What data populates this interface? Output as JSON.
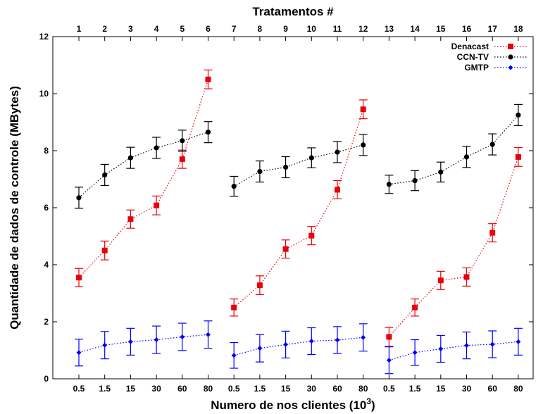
{
  "chart_data": {
    "type": "line",
    "title": "Tratamentos #",
    "xlabel": "Numero de nos clientes (10",
    "xlabel_sup": "3",
    "xlabel_suffix": ")",
    "ylabel": "Quantidade de dados de controle (MBytes)",
    "ylim": [
      0,
      12
    ],
    "yticks": [
      0,
      2,
      4,
      6,
      8,
      10,
      12
    ],
    "x_categories": [
      "0.5",
      "1.5",
      "15",
      "30",
      "60",
      "80",
      "0.5",
      "1.5",
      "15",
      "30",
      "60",
      "80",
      "0.5",
      "1.5",
      "15",
      "30",
      "60",
      "80"
    ],
    "top_categories": [
      "1",
      "2",
      "3",
      "4",
      "5",
      "6",
      "7",
      "8",
      "9",
      "10",
      "11",
      "12",
      "13",
      "14",
      "15",
      "16",
      "17",
      "18"
    ],
    "groups": [
      [
        0,
        5
      ],
      [
        6,
        11
      ],
      [
        12,
        17
      ]
    ],
    "grid": false,
    "legend_position": "top-right",
    "series": [
      {
        "name": "Denacast",
        "color": "#e8000b",
        "marker": "square",
        "values": [
          3.55,
          4.5,
          5.6,
          6.08,
          7.7,
          10.5,
          2.5,
          3.28,
          4.55,
          5.02,
          6.63,
          9.45,
          1.47,
          2.5,
          3.45,
          3.57,
          5.12,
          7.78
        ],
        "errors": [
          0.32,
          0.33,
          0.32,
          0.33,
          0.32,
          0.33,
          0.3,
          0.33,
          0.32,
          0.32,
          0.32,
          0.33,
          0.33,
          0.3,
          0.32,
          0.32,
          0.32,
          0.33
        ]
      },
      {
        "name": "CCN-TV",
        "color": "#000000",
        "marker": "circle",
        "values": [
          6.35,
          7.15,
          7.75,
          8.1,
          8.35,
          8.65,
          6.75,
          7.27,
          7.42,
          7.75,
          7.95,
          8.2,
          6.82,
          6.95,
          7.25,
          7.78,
          8.22,
          9.25
        ],
        "errors": [
          0.37,
          0.37,
          0.37,
          0.37,
          0.37,
          0.37,
          0.35,
          0.37,
          0.37,
          0.35,
          0.37,
          0.37,
          0.32,
          0.35,
          0.35,
          0.37,
          0.37,
          0.37
        ]
      },
      {
        "name": "GMTP",
        "color": "#0000ff",
        "marker": "diamond",
        "values": [
          0.92,
          1.18,
          1.3,
          1.37,
          1.47,
          1.55,
          0.82,
          1.07,
          1.2,
          1.32,
          1.36,
          1.45,
          0.65,
          0.92,
          1.05,
          1.17,
          1.21,
          1.3
        ],
        "errors": [
          0.47,
          0.48,
          0.47,
          0.48,
          0.48,
          0.48,
          0.45,
          0.48,
          0.47,
          0.47,
          0.47,
          0.48,
          0.47,
          0.45,
          0.47,
          0.47,
          0.47,
          0.47
        ]
      }
    ]
  }
}
